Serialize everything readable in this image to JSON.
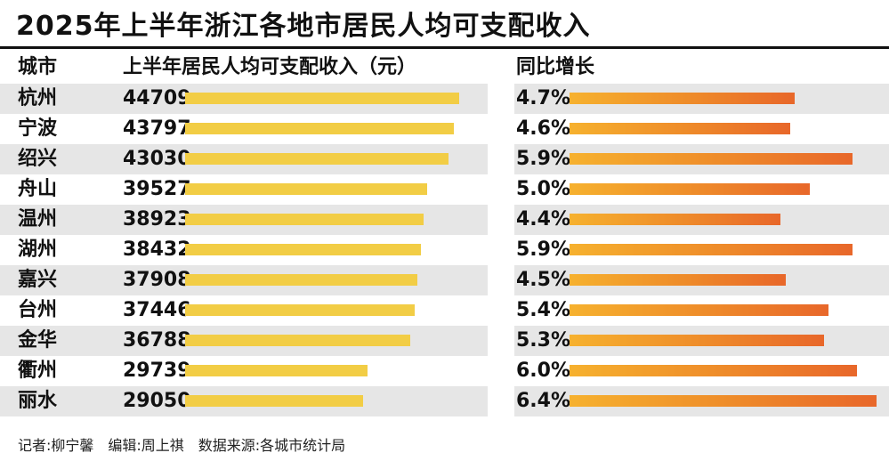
{
  "title": "2025年上半年浙江各地市居民人均可支配收入",
  "headers": {
    "city": "城市",
    "income": "上半年居民人均可支配收入（元）",
    "growth": "同比增长"
  },
  "chart_data": {
    "type": "bar",
    "title": "2025年上半年浙江各地市居民人均可支配收入",
    "categories": [
      "杭州",
      "宁波",
      "绍兴",
      "舟山",
      "温州",
      "湖州",
      "嘉兴",
      "台州",
      "金华",
      "衢州",
      "丽水"
    ],
    "series": [
      {
        "name": "上半年居民人均可支配收入（元）",
        "values": [
          44709,
          43797,
          43030,
          39527,
          38923,
          38432,
          37908,
          37446,
          36788,
          29739,
          29050
        ]
      },
      {
        "name": "同比增长",
        "values": [
          4.7,
          4.6,
          5.9,
          5.0,
          4.4,
          5.9,
          4.5,
          5.4,
          5.3,
          6.0,
          6.4
        ],
        "labels": [
          "4.7%",
          "4.6%",
          "5.9%",
          "5.0%",
          "4.4%",
          "5.9%",
          "4.5%",
          "5.4%",
          "5.3%",
          "6.0%",
          "6.4%"
        ]
      }
    ],
    "colors": {
      "income_bar": "#f2cd45",
      "growth_bar_start": "#f6b12e",
      "growth_bar_end": "#e8672a",
      "row_band": "#e6e6e6"
    },
    "grid": false,
    "legend": "none"
  },
  "footer": "记者:柳宁馨　编辑:周上祺　数据来源:各城市统计局"
}
